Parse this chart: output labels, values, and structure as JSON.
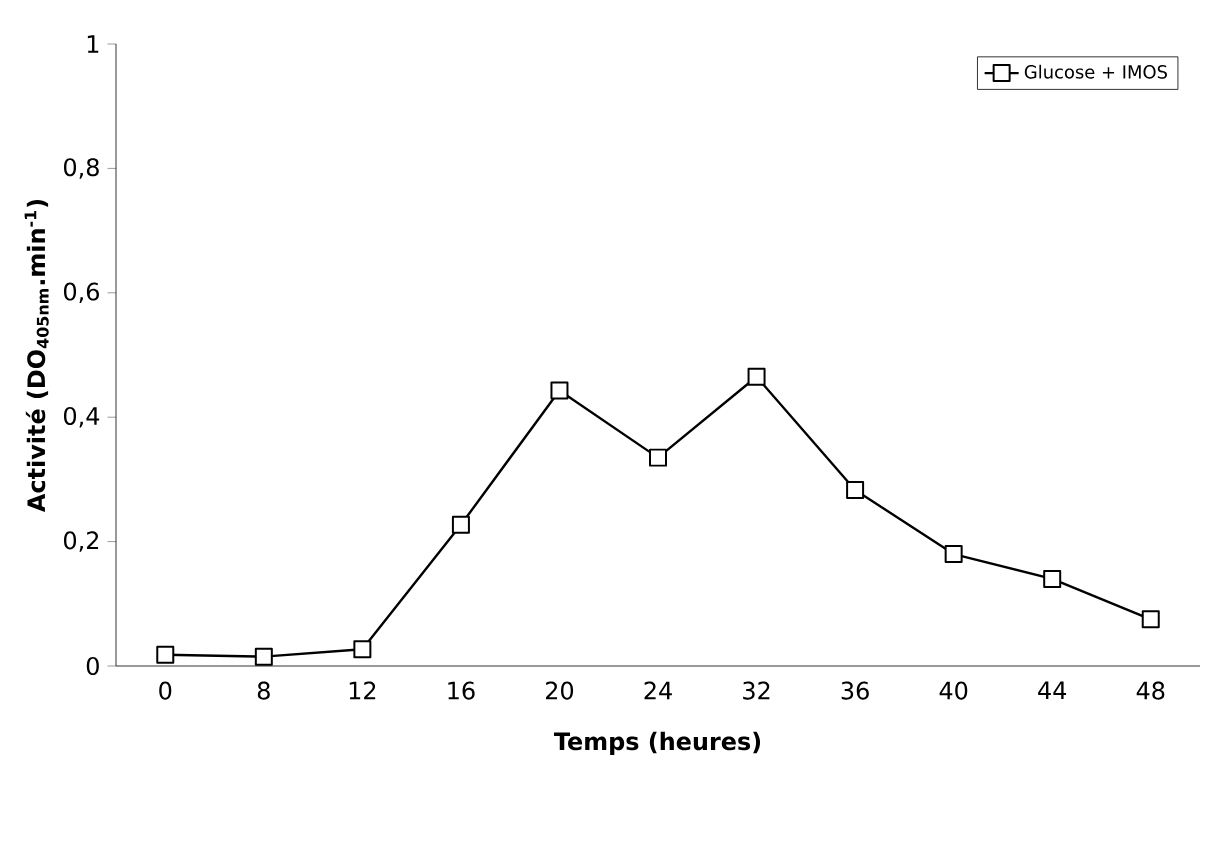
{
  "chart_data": {
    "type": "line",
    "xlabel": "Temps (heures)",
    "ylabel": "Activité (DO$_{405nm}$.min$^{-1}$)",
    "categories": [
      "0",
      "8",
      "12",
      "16",
      "20",
      "24",
      "32",
      "36",
      "40",
      "44",
      "48"
    ],
    "series": [
      {
        "name": "Glucose + IMOS",
        "color": "#000000",
        "values": [
          0.018,
          0.015,
          0.027,
          0.227,
          0.443,
          0.335,
          0.465,
          0.283,
          0.18,
          0.14,
          0.075
        ]
      }
    ],
    "ylim": [
      0,
      1
    ],
    "yticks": [
      0,
      {
        "value": 0.2,
        "label": "0,2"
      },
      {
        "value": 0.4,
        "label": "0,4"
      },
      {
        "value": 0.6,
        "label": "0,6"
      },
      {
        "value": 0.8,
        "label": "0,8"
      },
      1
    ],
    "legend": "top right",
    "marker": "square",
    "line_style": "solid",
    "grid": false
  }
}
